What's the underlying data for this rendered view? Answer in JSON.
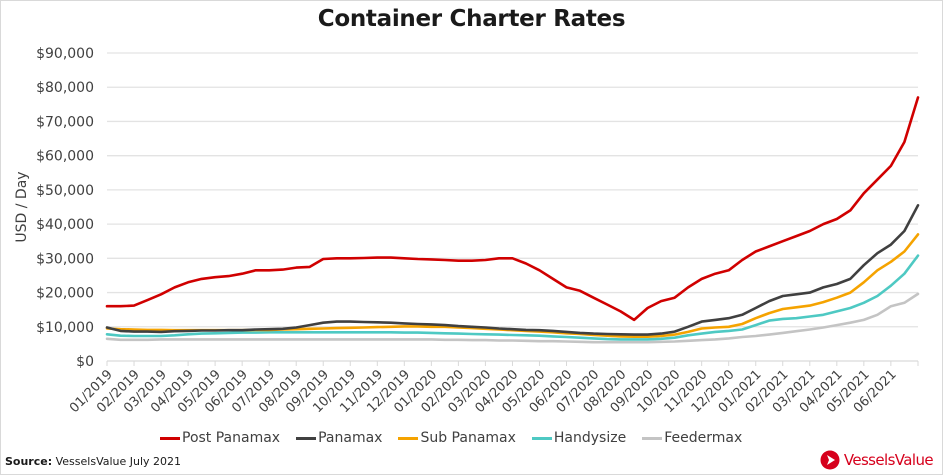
{
  "chart_data": {
    "type": "line",
    "title": "Container Charter Rates",
    "xlabel": "",
    "ylabel": "USD / Day",
    "ylim": [
      0,
      90000
    ],
    "yticks": [
      0,
      10000,
      20000,
      30000,
      40000,
      50000,
      60000,
      70000,
      80000,
      90000
    ],
    "ytick_labels": [
      "$0",
      "$10,000",
      "$20,000",
      "$30,000",
      "$40,000",
      "$50,000",
      "$60,000",
      "$70,000",
      "$80,000",
      "$90,000"
    ],
    "xtick_labels": [
      "01/2019",
      "02/2019",
      "03/2019",
      "04/2019",
      "05/2019",
      "06/2019",
      "07/2019",
      "08/2019",
      "09/2019",
      "10/2019",
      "11/2019",
      "12/2019",
      "01/2020",
      "02/2020",
      "03/2020",
      "04/2020",
      "05/2020",
      "06/2020",
      "07/2020",
      "08/2020",
      "09/2020",
      "10/2020",
      "11/2020",
      "12/2020",
      "01/2021",
      "02/2021",
      "03/2021",
      "04/2021",
      "05/2021",
      "06/2021"
    ],
    "x_step": "half-month (index 0 = 01/2019, index 60 = 07/2021)",
    "grid": true,
    "legend_position": "bottom",
    "series": [
      {
        "name": "Post Panamax",
        "color": "#d00000",
        "values": [
          16000,
          16000,
          16200,
          17800,
          19500,
          21500,
          23000,
          24000,
          24500,
          24800,
          25500,
          26500,
          26500,
          26700,
          27300,
          27500,
          29800,
          30000,
          30000,
          30100,
          30200,
          30200,
          30000,
          29800,
          29700,
          29500,
          29300,
          29300,
          29500,
          30000,
          30000,
          28500,
          26500,
          24000,
          21500,
          20500,
          18500,
          16500,
          14500,
          12000,
          15500,
          17500,
          18500,
          21500,
          24000,
          25500,
          26500,
          29500,
          32000,
          33500,
          35000,
          36500,
          38000,
          40000,
          41500,
          44000,
          49000,
          53000,
          57000,
          64000,
          77000
        ]
      },
      {
        "name": "Panamax",
        "color": "#404040",
        "values": [
          9800,
          8800,
          8600,
          8600,
          8500,
          8700,
          8800,
          8900,
          8900,
          9000,
          9000,
          9200,
          9300,
          9400,
          9800,
          10500,
          11200,
          11500,
          11500,
          11400,
          11300,
          11200,
          11000,
          10800,
          10700,
          10500,
          10200,
          10000,
          9800,
          9500,
          9300,
          9100,
          9000,
          8800,
          8500,
          8200,
          8000,
          7900,
          7800,
          7700,
          7700,
          8000,
          8600,
          10000,
          11500,
          12000,
          12500,
          13500,
          15500,
          17500,
          19000,
          19500,
          20000,
          21500,
          22500,
          24000,
          28000,
          31500,
          34000,
          38000,
          45500
        ]
      },
      {
        "name": "Sub Panamax",
        "color": "#f5a300",
        "values": [
          9500,
          9300,
          9200,
          9100,
          9100,
          9000,
          9000,
          9000,
          9000,
          9000,
          9000,
          9100,
          9100,
          9200,
          9300,
          9400,
          9500,
          9600,
          9700,
          9800,
          9900,
          10000,
          10100,
          10100,
          10000,
          10000,
          9800,
          9600,
          9400,
          9200,
          9000,
          8800,
          8600,
          8400,
          8100,
          7900,
          7600,
          7400,
          7200,
          7100,
          7100,
          7300,
          7700,
          8500,
          9500,
          9800,
          10000,
          10800,
          12500,
          14000,
          15200,
          15700,
          16200,
          17200,
          18500,
          20000,
          23000,
          26500,
          29000,
          32000,
          37000
        ]
      },
      {
        "name": "Handysize",
        "color": "#4ec9c3",
        "values": [
          7800,
          7400,
          7300,
          7300,
          7300,
          7500,
          7800,
          8000,
          8100,
          8200,
          8300,
          8300,
          8400,
          8400,
          8400,
          8400,
          8400,
          8400,
          8400,
          8400,
          8400,
          8400,
          8300,
          8300,
          8200,
          8100,
          8000,
          7900,
          7800,
          7700,
          7600,
          7500,
          7400,
          7200,
          7000,
          6800,
          6600,
          6400,
          6300,
          6300,
          6300,
          6500,
          6800,
          7500,
          8000,
          8500,
          8800,
          9200,
          10500,
          11800,
          12300,
          12500,
          13000,
          13500,
          14500,
          15500,
          17000,
          19000,
          22000,
          25500,
          30800
        ]
      },
      {
        "name": "Feedermax",
        "color": "#c4c4c4",
        "values": [
          6500,
          6200,
          6200,
          6200,
          6300,
          6300,
          6300,
          6300,
          6300,
          6300,
          6300,
          6300,
          6300,
          6300,
          6300,
          6300,
          6300,
          6300,
          6300,
          6300,
          6300,
          6300,
          6300,
          6300,
          6300,
          6200,
          6200,
          6100,
          6100,
          6000,
          6000,
          5900,
          5800,
          5800,
          5700,
          5600,
          5500,
          5500,
          5500,
          5500,
          5500,
          5600,
          5700,
          5900,
          6100,
          6300,
          6600,
          7000,
          7300,
          7700,
          8200,
          8700,
          9200,
          9800,
          10500,
          11200,
          12000,
          13500,
          16000,
          17000,
          19600
        ]
      }
    ]
  },
  "footer": {
    "source_label": "Source:",
    "source_text": " VesselsValue July 2021",
    "brand_name": "VesselsValue"
  }
}
